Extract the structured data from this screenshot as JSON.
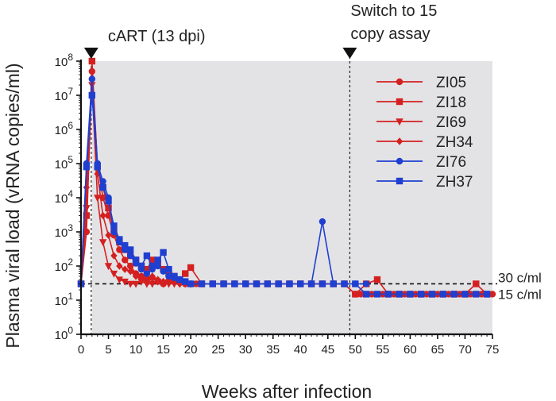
{
  "chart_data": {
    "type": "line",
    "xlabel": "Weeks after infection",
    "ylabel": "Plasma viral load (vRNA copies/ml)",
    "xlim": [
      0,
      75
    ],
    "ylim_log10": [
      0,
      8
    ],
    "y_scale": "log10",
    "x_ticks": [
      0,
      5,
      10,
      15,
      20,
      25,
      30,
      35,
      40,
      45,
      50,
      55,
      60,
      65,
      70,
      75
    ],
    "x_tick_labels": [
      "0",
      "5",
      "10",
      "15",
      "20",
      "25",
      "30",
      "35",
      "40",
      "45",
      "50",
      "55",
      "60",
      "65",
      "70",
      "75"
    ],
    "y_tick_labels": [
      {
        "base": "10",
        "exp": "0"
      },
      {
        "base": "10",
        "exp": "1"
      },
      {
        "base": "10",
        "exp": "2"
      },
      {
        "base": "10",
        "exp": "3"
      },
      {
        "base": "10",
        "exp": "4"
      },
      {
        "base": "10",
        "exp": "5"
      },
      {
        "base": "10",
        "exp": "6"
      },
      {
        "base": "10",
        "exp": "7"
      },
      {
        "base": "10",
        "exp": "8"
      }
    ],
    "shaded_region_x": [
      2,
      75
    ],
    "vlines": [
      {
        "x": 1.86,
        "label": "cART (13 dpi)"
      },
      {
        "x": 49,
        "label_lines": [
          "Switch to 15",
          "copy assay"
        ]
      }
    ],
    "hlines": [
      {
        "y": 30,
        "label": "30 c/ml",
        "x_range": [
          0,
          75
        ]
      },
      {
        "y": 15,
        "label": "15 c/ml"
      }
    ],
    "legend_position": "top-right",
    "series": [
      {
        "name": "ZI05",
        "color": "#d42020",
        "marker": "circle",
        "x": [
          0,
          1,
          2,
          3,
          4,
          5,
          6,
          7,
          8,
          9,
          10,
          11,
          12,
          13,
          14,
          15,
          16,
          17,
          18,
          19,
          20,
          21,
          22,
          24,
          26,
          28,
          30,
          32,
          34,
          36,
          38,
          40,
          42,
          44,
          46,
          48,
          50,
          51,
          53,
          55,
          57,
          59,
          61,
          63,
          65,
          67,
          69,
          71,
          73,
          75
        ],
        "y": [
          30,
          1000,
          50000000,
          100000,
          10000,
          3000,
          800,
          300,
          150,
          100,
          60,
          50,
          40,
          45,
          35,
          30,
          50,
          40,
          35,
          30,
          30,
          30,
          30,
          30,
          30,
          30,
          30,
          30,
          30,
          30,
          30,
          30,
          30,
          30,
          30,
          30,
          15,
          15,
          15,
          15,
          15,
          15,
          15,
          15,
          15,
          15,
          15,
          15,
          15,
          15
        ]
      },
      {
        "name": "ZI18",
        "color": "#d42020",
        "marker": "square",
        "x": [
          0,
          1,
          2,
          3,
          4,
          5,
          6,
          7,
          8,
          9,
          10,
          11,
          12,
          13,
          14,
          15,
          16,
          17,
          18,
          19,
          20,
          22,
          24,
          26,
          28,
          30,
          32,
          34,
          36,
          38,
          40,
          42,
          44,
          46,
          48,
          50,
          52,
          54,
          56,
          58,
          60,
          62,
          64,
          66,
          68,
          70,
          72,
          74
        ],
        "y": [
          30,
          3000,
          100000000,
          80000,
          20000,
          5000,
          1000,
          500,
          300,
          200,
          150,
          100,
          80,
          150,
          120,
          80,
          60,
          50,
          40,
          60,
          90,
          30,
          30,
          30,
          30,
          30,
          30,
          30,
          30,
          30,
          30,
          30,
          30,
          30,
          30,
          15,
          30,
          40,
          15,
          15,
          15,
          15,
          15,
          15,
          15,
          15,
          30,
          15
        ]
      },
      {
        "name": "ZI69",
        "color": "#d42020",
        "marker": "triangle-down",
        "x": [
          0,
          1,
          2,
          3,
          4,
          5,
          6,
          7,
          8,
          9,
          10,
          11,
          12,
          13,
          14,
          15,
          16,
          17,
          18,
          19,
          20
        ],
        "y": [
          30,
          5000,
          20000000,
          10000,
          500,
          100,
          60,
          40,
          35,
          30,
          30,
          35,
          30,
          30,
          35,
          30,
          30,
          30,
          30,
          30,
          30
        ]
      },
      {
        "name": "ZH34",
        "color": "#d42020",
        "marker": "diamond",
        "x": [
          0,
          1,
          2,
          3,
          4,
          5,
          6,
          7,
          8,
          9,
          10,
          11,
          12,
          13,
          14,
          15,
          16,
          17,
          18,
          19,
          20
        ],
        "y": [
          30,
          20000,
          30000000,
          50000,
          3000,
          800,
          200,
          100,
          80,
          70,
          50,
          40,
          45,
          50,
          40,
          35,
          40,
          35,
          30,
          30,
          30
        ]
      },
      {
        "name": "ZI76",
        "color": "#1f3fd0",
        "marker": "circle",
        "x": [
          0,
          1,
          2,
          3,
          4,
          5,
          6,
          7,
          8,
          9,
          10,
          11,
          12,
          13,
          14,
          15,
          16,
          17,
          18,
          19,
          20,
          22,
          24,
          26,
          28,
          30,
          32,
          34,
          36,
          38,
          40,
          42,
          44,
          46,
          48,
          50,
          52
        ],
        "y": [
          30,
          100000,
          30000000,
          100000,
          30000,
          10000,
          1000,
          500,
          300,
          200,
          120,
          80,
          60,
          80,
          100,
          70,
          50,
          45,
          40,
          35,
          30,
          30,
          30,
          30,
          30,
          30,
          30,
          30,
          30,
          30,
          30,
          30,
          2000,
          30,
          30,
          30,
          30
        ]
      },
      {
        "name": "ZH37",
        "color": "#1f3fd0",
        "marker": "square",
        "x": [
          0,
          1,
          2,
          3,
          4,
          5,
          6,
          7,
          8,
          9,
          10,
          11,
          12,
          13,
          14,
          15,
          16,
          17,
          18,
          19,
          20,
          22,
          24,
          26,
          28,
          30,
          32,
          34,
          36,
          38,
          40,
          42,
          44,
          46,
          48,
          50,
          52,
          54,
          56,
          58,
          60,
          62,
          64,
          66,
          68,
          70,
          72,
          74
        ],
        "y": [
          30,
          80000,
          10000000,
          80000,
          20000,
          8000,
          1500,
          600,
          400,
          300,
          150,
          100,
          200,
          100,
          150,
          250,
          80,
          50,
          40,
          35,
          30,
          30,
          30,
          30,
          30,
          30,
          30,
          30,
          30,
          30,
          30,
          30,
          30,
          30,
          30,
          30,
          15,
          15,
          15,
          15,
          15,
          15,
          15,
          15,
          15,
          15,
          15,
          15
        ]
      }
    ]
  }
}
